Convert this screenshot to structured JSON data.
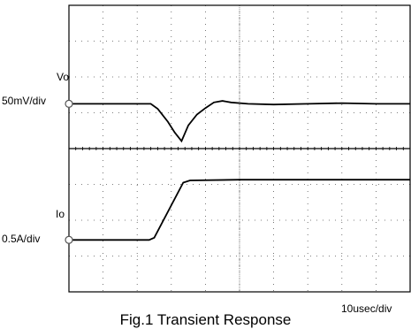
{
  "chart_data": {
    "type": "line",
    "title": "Fig.1 Transient Response",
    "time_scale": "10usec/div",
    "grid": true,
    "x_divisions": 10,
    "y_divisions": 8,
    "channels": [
      {
        "name": "Vo",
        "scale": "50mV/div",
        "unit": "V",
        "x": [
          0,
          2.0,
          4.8,
          5.2,
          5.8,
          6.2,
          6.6,
          7.0,
          7.5,
          8.0,
          8.5,
          9.0,
          9.5,
          10.5,
          12.0,
          14.0,
          16.0,
          18.0,
          20.0
        ],
        "y": [
          0,
          0,
          0,
          -0.007,
          -0.025,
          -0.04,
          -0.052,
          -0.03,
          -0.015,
          -0.006,
          0.002,
          0.004,
          0.002,
          0,
          -0.001,
          0,
          0.001,
          0,
          0
        ]
      },
      {
        "name": "Io",
        "scale": "0.5A/div",
        "unit": "A",
        "x": [
          0,
          4.7,
          5.0,
          6.7,
          7.1,
          10.0,
          20.0
        ],
        "y": [
          0,
          0,
          0.03,
          0.8,
          0.83,
          0.84,
          0.84
        ]
      }
    ]
  }
}
